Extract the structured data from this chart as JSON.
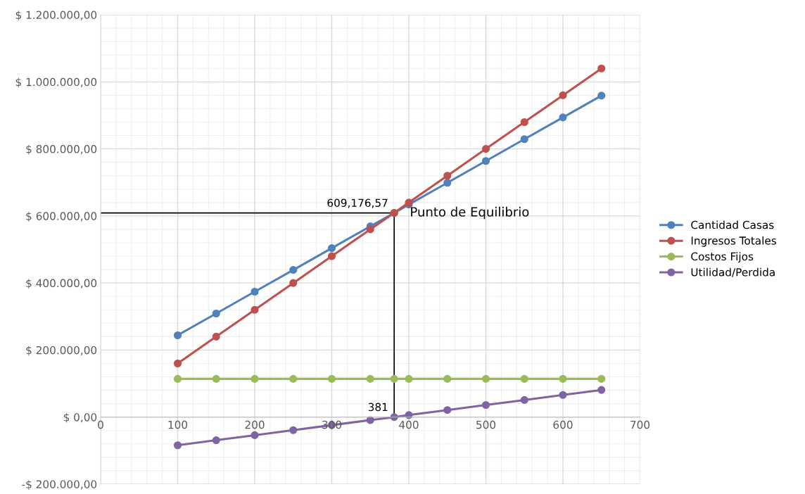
{
  "chart_data": {
    "type": "line",
    "x": [
      100,
      150,
      200,
      250,
      300,
      350,
      381,
      400,
      450,
      500,
      550,
      600,
      650
    ],
    "series": [
      {
        "name": "Cantidad Casas",
        "color": "#4f81bd",
        "values": [
          244000,
          309000,
          374000,
          439000,
          504000,
          569000,
          609000,
          634000,
          699000,
          764000,
          829000,
          894000,
          959000
        ]
      },
      {
        "name": "Ingresos Totales",
        "color": "#c0504d",
        "values": [
          160000,
          240000,
          320000,
          400000,
          480000,
          560000,
          609000,
          640000,
          720000,
          800000,
          880000,
          960000,
          1040000
        ]
      },
      {
        "name": "Costos Fijos",
        "color": "#9bbb59",
        "values": [
          114000,
          114000,
          114000,
          114000,
          114000,
          114000,
          114000,
          114000,
          114000,
          114000,
          114000,
          114000,
          114000
        ]
      },
      {
        "name": "Utilidad/Perdida",
        "color": "#8064a2",
        "values": [
          -84000,
          -69000,
          -54000,
          -39000,
          -24000,
          -9000,
          0,
          6000,
          21000,
          36000,
          51000,
          66000,
          81000
        ]
      }
    ],
    "xlim": [
      0,
      700
    ],
    "xticks": [
      0,
      100,
      200,
      300,
      400,
      500,
      600,
      700
    ],
    "ylim": [
      -200000,
      1200000
    ],
    "yticks": [
      {
        "value": -200000,
        "label": "-$ 200.000,00"
      },
      {
        "value": 0,
        "label": "$ 0,00"
      },
      {
        "value": 200000,
        "label": "$ 200.000,00"
      },
      {
        "value": 400000,
        "label": "$ 400.000,00"
      },
      {
        "value": 600000,
        "label": "$ 600.000,00"
      },
      {
        "value": 800000,
        "label": "$ 800.000,00"
      },
      {
        "value": 1000000,
        "label": "$ 1.000.000,00"
      },
      {
        "value": 1200000,
        "label": "$ 1.200.000,00"
      }
    ],
    "annotations": [
      {
        "text": "609,176,57",
        "x": 381,
        "y": 609000
      },
      "Punto de Equilibrio",
      {
        "text": "381",
        "x": 381,
        "y": 0
      }
    ],
    "grid": true,
    "legend": "right",
    "marker": "circle",
    "line_style": "solid"
  }
}
